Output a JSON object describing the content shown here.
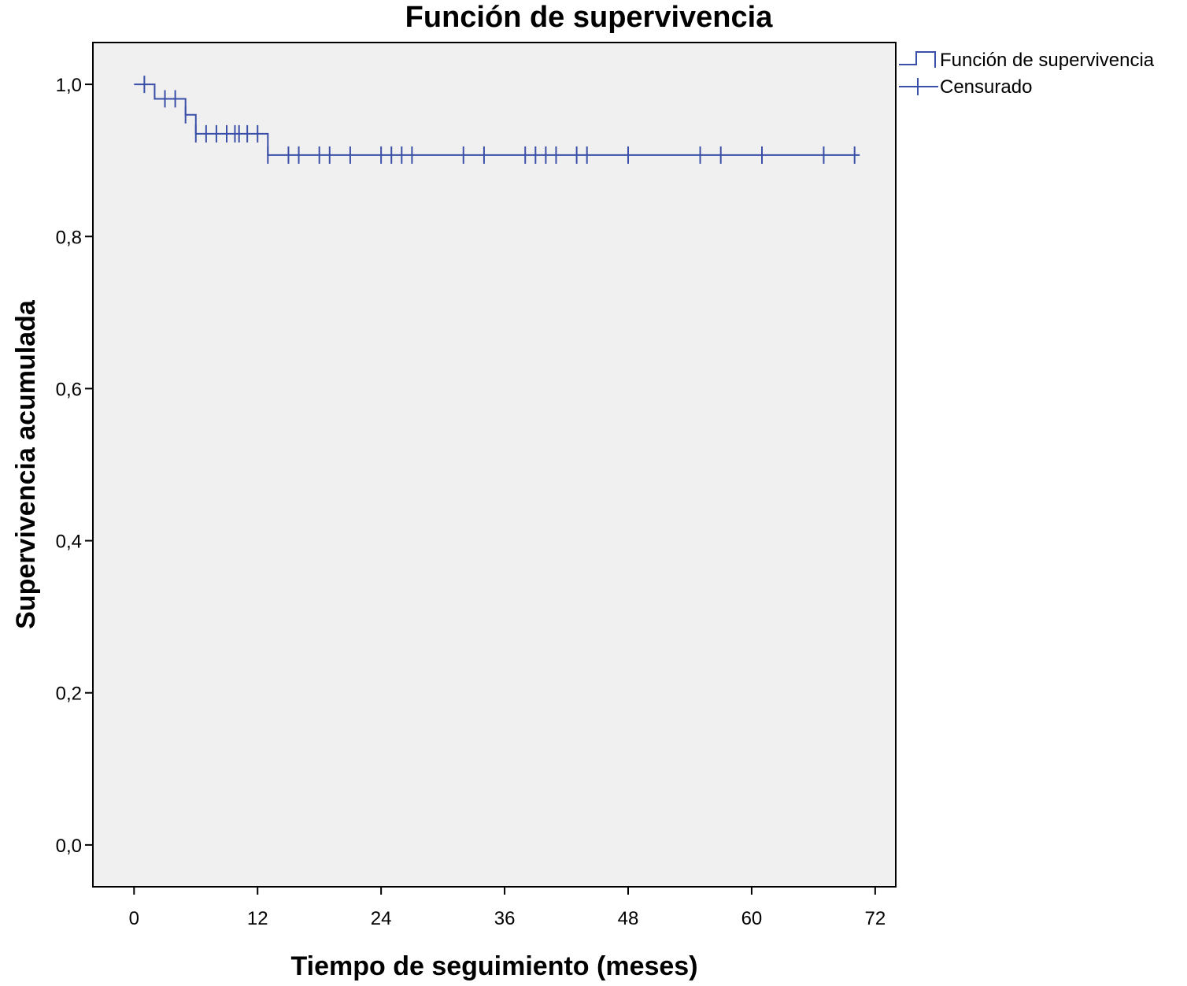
{
  "chart_data": {
    "type": "line",
    "title": "Función de supervivencia",
    "xlabel": "Tiempo de seguimiento (meses)",
    "ylabel": "Supervivencia acumulada",
    "xlim": [
      -4,
      74
    ],
    "ylim": [
      -0.055,
      1.055
    ],
    "x_ticks": [
      0,
      12,
      24,
      36,
      48,
      60,
      72
    ],
    "x_tick_labels": [
      "0",
      "12",
      "24",
      "36",
      "48",
      "60",
      "72"
    ],
    "y_ticks": [
      0.0,
      0.2,
      0.4,
      0.6,
      0.8,
      1.0
    ],
    "y_tick_labels": [
      "0,0",
      "0,2",
      "0,4",
      "0,6",
      "0,8",
      "1,0"
    ],
    "grid": false,
    "legend_position": "top-right",
    "background_color": "#f0f0f0",
    "line_color": "#3a4fa8",
    "series": [
      {
        "name": "Función de supervivencia",
        "kind": "step",
        "x": [
          0,
          2,
          5,
          6,
          13,
          70.5
        ],
        "y": [
          1.0,
          0.981,
          0.96,
          0.935,
          0.907,
          0.907
        ]
      },
      {
        "name": "Censurado",
        "kind": "censor-marks",
        "points": [
          [
            1,
            1.0
          ],
          [
            3,
            0.981
          ],
          [
            4,
            0.981
          ],
          [
            5,
            0.96
          ],
          [
            6,
            0.935
          ],
          [
            7,
            0.935
          ],
          [
            8,
            0.935
          ],
          [
            9,
            0.935
          ],
          [
            9.8,
            0.935
          ],
          [
            10.2,
            0.935
          ],
          [
            11,
            0.935
          ],
          [
            12,
            0.935
          ],
          [
            13,
            0.907
          ],
          [
            15,
            0.907
          ],
          [
            16,
            0.907
          ],
          [
            18,
            0.907
          ],
          [
            19,
            0.907
          ],
          [
            21,
            0.907
          ],
          [
            24,
            0.907
          ],
          [
            25,
            0.907
          ],
          [
            26,
            0.907
          ],
          [
            27,
            0.907
          ],
          [
            32,
            0.907
          ],
          [
            34,
            0.907
          ],
          [
            38,
            0.907
          ],
          [
            39,
            0.907
          ],
          [
            40,
            0.907
          ],
          [
            41,
            0.907
          ],
          [
            43,
            0.907
          ],
          [
            44,
            0.907
          ],
          [
            48,
            0.907
          ],
          [
            55,
            0.907
          ],
          [
            57,
            0.907
          ],
          [
            61,
            0.907
          ],
          [
            67,
            0.907
          ],
          [
            70,
            0.907
          ]
        ]
      }
    ]
  }
}
